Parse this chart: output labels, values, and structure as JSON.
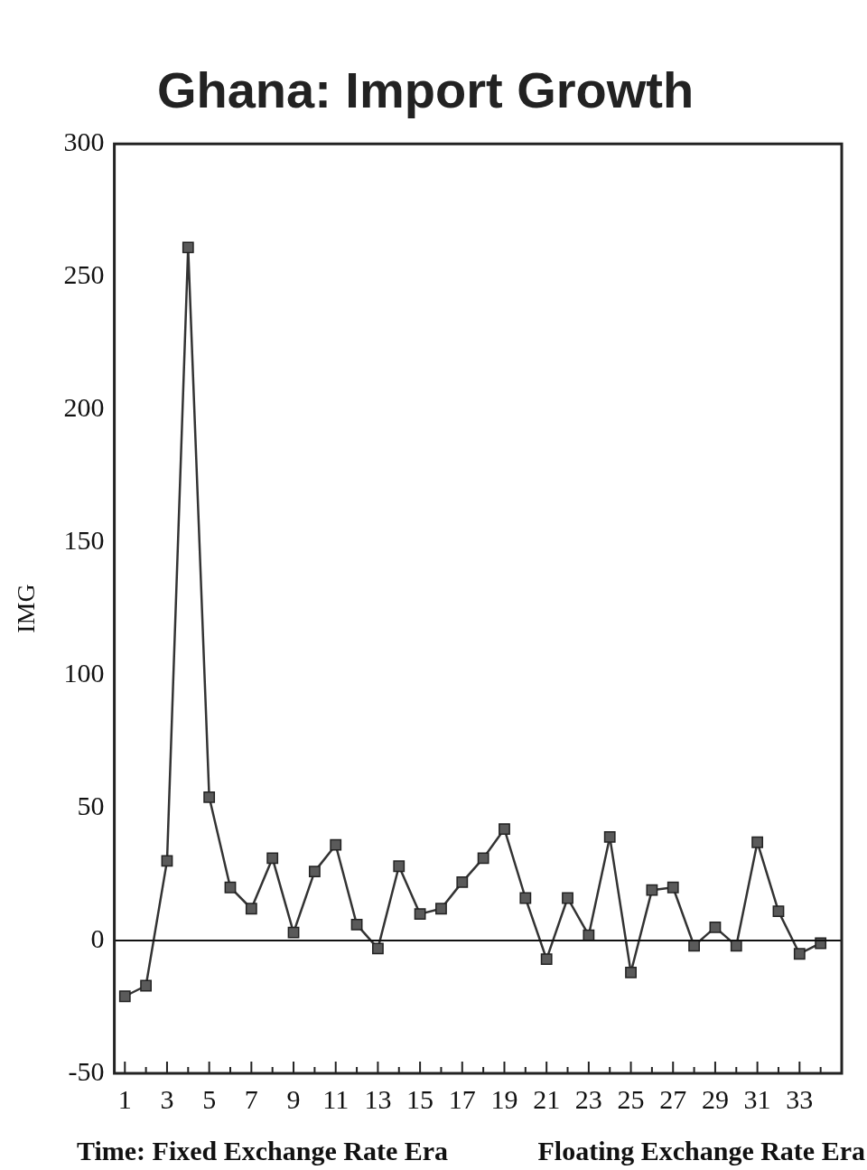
{
  "chart_data": {
    "type": "line",
    "title": "Ghana: Import Growth",
    "ylabel": "IMG",
    "xlabel": "Time: Fixed Exchange Rate Era",
    "annotations": [
      "Floating Exchange Rate Era"
    ],
    "x": [
      1,
      2,
      3,
      4,
      5,
      6,
      7,
      8,
      9,
      10,
      11,
      12,
      13,
      14,
      15,
      16,
      17,
      18,
      19,
      20,
      21,
      22,
      23,
      24,
      25,
      26,
      27,
      28,
      29,
      30,
      31,
      32,
      33,
      34
    ],
    "xlim": [
      0.5,
      35
    ],
    "xticks": [
      1,
      {
        "value": 2,
        "label": null
      },
      3,
      {
        "value": 4,
        "label": null
      },
      5,
      {
        "value": 6,
        "label": null
      },
      7,
      {
        "value": 8,
        "label": null
      },
      9,
      {
        "value": 10,
        "label": null
      },
      11,
      {
        "value": 12,
        "label": null
      },
      13,
      {
        "value": 14,
        "label": null
      },
      15,
      {
        "value": 16,
        "label": null
      },
      17,
      {
        "value": 18,
        "label": null
      },
      19,
      {
        "value": 20,
        "label": null
      },
      21,
      {
        "value": 22,
        "label": null
      },
      23,
      {
        "value": 24,
        "label": null
      },
      25,
      {
        "value": 26,
        "label": null
      },
      27,
      {
        "value": 28,
        "label": null
      },
      29,
      {
        "value": 30,
        "label": null
      },
      31,
      {
        "value": 32,
        "label": null
      },
      33,
      {
        "value": 34,
        "label": null
      }
    ],
    "series": [
      {
        "color": "#333333",
        "values": [
          -21,
          -17,
          30,
          261,
          54,
          20,
          12,
          31,
          3,
          26,
          36,
          6,
          -3,
          28,
          10,
          12,
          22,
          31,
          42,
          16,
          -7,
          16,
          2,
          39,
          -12,
          19,
          20,
          -2,
          5,
          -2,
          37,
          11,
          -5,
          -1
        ]
      }
    ],
    "ylim": [
      -50,
      300
    ],
    "yticks": [
      -50,
      0,
      50,
      100,
      150,
      200,
      250,
      300
    ],
    "ref_lines": [
      {
        "axis": "y",
        "value": 0,
        "color": "#111111"
      }
    ],
    "grid": false,
    "legend": false,
    "marker": "square",
    "line_style": "solid"
  }
}
